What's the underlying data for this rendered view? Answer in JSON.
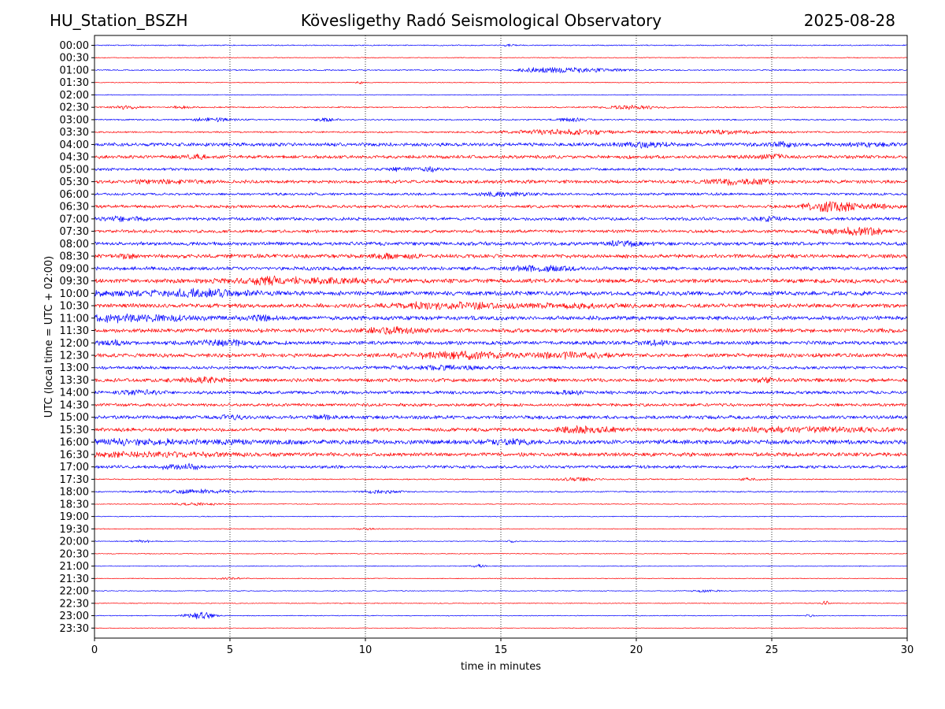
{
  "header": {
    "station": "HU_Station_BSZH",
    "observatory": "Kövesligethy Radó Seismological Observatory",
    "date": "2025-08-28"
  },
  "chart_data": {
    "type": "line",
    "chart_kind": "helicorder (24 h seismogram, 30-minute traces)",
    "xlabel": "time in minutes",
    "ylabel": "UTC (local time = UTC + 02:00)",
    "xlim": [
      0,
      30
    ],
    "x_ticks": [
      0,
      5,
      10,
      15,
      20,
      25,
      30
    ],
    "x_tick_labels": [
      "0",
      "5",
      "10",
      "15",
      "20",
      "25",
      "30"
    ],
    "grid": "vertical dotted lines at each x tick",
    "trace_colors": [
      "#0000ff",
      "#ff0000"
    ],
    "rows": [
      {
        "label": "00:00",
        "amp": 0.8,
        "bursts": [
          [
            15.3,
            1.6,
            0.2
          ]
        ]
      },
      {
        "label": "00:30",
        "amp": 0.6,
        "bursts": []
      },
      {
        "label": "01:00",
        "amp": 0.9,
        "bursts": [
          [
            17.8,
            3.5,
            1.2
          ],
          [
            16.3,
            2.5,
            0.5
          ]
        ]
      },
      {
        "label": "01:30",
        "amp": 0.6,
        "bursts": [
          [
            9.8,
            2.0,
            0.1
          ]
        ]
      },
      {
        "label": "02:00",
        "amp": 0.6,
        "bursts": []
      },
      {
        "label": "02:30",
        "amp": 0.9,
        "bursts": [
          [
            1.2,
            2.5,
            0.4
          ],
          [
            3.2,
            2.5,
            0.2
          ],
          [
            19.8,
            3.0,
            0.8
          ]
        ]
      },
      {
        "label": "03:00",
        "amp": 1.0,
        "bursts": [
          [
            4.4,
            3.0,
            0.6
          ],
          [
            8.5,
            2.5,
            0.3
          ],
          [
            17.5,
            2.5,
            0.5
          ]
        ]
      },
      {
        "label": "03:30",
        "amp": 1.1,
        "bursts": [
          [
            17.3,
            4.0,
            1.5
          ],
          [
            23.0,
            3.0,
            1.5
          ]
        ]
      },
      {
        "label": "04:00",
        "amp": 2.6,
        "bursts": [
          [
            20.2,
            4.0,
            0.6
          ],
          [
            28.5,
            3.0,
            0.6
          ],
          [
            25.4,
            3.5,
            0.3
          ]
        ]
      },
      {
        "label": "04:30",
        "amp": 2.4,
        "bursts": [
          [
            3.7,
            3.0,
            0.3
          ],
          [
            25.0,
            3.0,
            0.6
          ]
        ]
      },
      {
        "label": "05:00",
        "amp": 2.0,
        "bursts": [
          [
            12.4,
            3.0,
            0.3
          ],
          [
            11.2,
            2.5,
            0.3
          ]
        ]
      },
      {
        "label": "05:30",
        "amp": 2.4,
        "bursts": [
          [
            23.4,
            4.0,
            0.6
          ],
          [
            24.6,
            3.0,
            0.3
          ],
          [
            2.5,
            2.5,
            1.0
          ]
        ]
      },
      {
        "label": "06:00",
        "amp": 1.8,
        "bursts": [
          [
            15.0,
            2.5,
            0.8
          ]
        ]
      },
      {
        "label": "06:30",
        "amp": 2.2,
        "bursts": [
          [
            26.9,
            6.0,
            0.5
          ],
          [
            27.6,
            5.0,
            0.5
          ],
          [
            29.0,
            4.0,
            0.3
          ]
        ]
      },
      {
        "label": "07:00",
        "amp": 2.4,
        "bursts": [
          [
            24.8,
            4.0,
            0.4
          ],
          [
            1.0,
            3.0,
            0.6
          ]
        ]
      },
      {
        "label": "07:30",
        "amp": 2.2,
        "bursts": [
          [
            27.8,
            4.5,
            0.7
          ],
          [
            28.6,
            4.0,
            0.4
          ]
        ]
      },
      {
        "label": "08:00",
        "amp": 2.6,
        "bursts": [
          [
            19.5,
            3.5,
            0.5
          ]
        ]
      },
      {
        "label": "08:30",
        "amp": 2.8,
        "bursts": [
          [
            1.2,
            4.0,
            0.2
          ],
          [
            10.7,
            3.5,
            0.4
          ],
          [
            11.8,
            3.0,
            0.2
          ]
        ]
      },
      {
        "label": "09:00",
        "amp": 2.6,
        "bursts": [
          [
            16.5,
            3.5,
            1.0
          ]
        ]
      },
      {
        "label": "09:30",
        "amp": 3.0,
        "bursts": [
          [
            8.0,
            4.0,
            2.0
          ],
          [
            6.3,
            3.5,
            0.5
          ]
        ]
      },
      {
        "label": "10:00",
        "amp": 3.2,
        "bursts": [
          [
            3.9,
            5.0,
            1.2
          ],
          [
            1.0,
            3.0,
            1.2
          ]
        ]
      },
      {
        "label": "10:30",
        "amp": 3.0,
        "bursts": [
          [
            13.5,
            4.0,
            1.5
          ],
          [
            12.0,
            3.0,
            0.5
          ],
          [
            17.5,
            3.0,
            1.0
          ]
        ]
      },
      {
        "label": "11:00",
        "amp": 3.0,
        "bursts": [
          [
            1.3,
            5.0,
            1.8
          ],
          [
            6.1,
            3.0,
            0.4
          ]
        ]
      },
      {
        "label": "11:30",
        "amp": 3.0,
        "bursts": [
          [
            11.0,
            4.0,
            0.8
          ]
        ]
      },
      {
        "label": "12:00",
        "amp": 2.8,
        "bursts": [
          [
            4.6,
            4.0,
            0.8
          ],
          [
            20.7,
            3.5,
            0.4
          ],
          [
            0.6,
            3.0,
            0.4
          ]
        ]
      },
      {
        "label": "12:30",
        "amp": 2.8,
        "bursts": [
          [
            13.4,
            4.5,
            1.5
          ],
          [
            17.5,
            4.0,
            1.0
          ]
        ]
      },
      {
        "label": "13:00",
        "amp": 2.2,
        "bursts": [
          [
            13.0,
            3.0,
            1.0
          ]
        ]
      },
      {
        "label": "13:30",
        "amp": 2.6,
        "bursts": [
          [
            4.0,
            4.0,
            0.6
          ],
          [
            24.8,
            3.0,
            0.3
          ]
        ]
      },
      {
        "label": "14:00",
        "amp": 2.4,
        "bursts": [
          [
            1.7,
            3.5,
            0.5
          ],
          [
            17.6,
            3.0,
            0.3
          ]
        ]
      },
      {
        "label": "14:30",
        "amp": 2.2,
        "bursts": []
      },
      {
        "label": "15:00",
        "amp": 2.6,
        "bursts": [
          [
            5.1,
            3.5,
            0.3
          ],
          [
            8.4,
            3.0,
            0.3
          ]
        ]
      },
      {
        "label": "15:30",
        "amp": 2.6,
        "bursts": [
          [
            18.0,
            4.5,
            0.8
          ],
          [
            26.3,
            3.5,
            2.0
          ]
        ]
      },
      {
        "label": "16:00",
        "amp": 3.2,
        "bursts": [
          [
            1.5,
            3.5,
            3.0
          ],
          [
            15.2,
            3.0,
            0.8
          ]
        ]
      },
      {
        "label": "16:30",
        "amp": 2.8,
        "bursts": [
          [
            2.0,
            3.0,
            2.5
          ]
        ]
      },
      {
        "label": "17:00",
        "amp": 2.2,
        "bursts": [
          [
            3.4,
            4.0,
            0.4
          ],
          [
            2.6,
            3.0,
            0.3
          ]
        ]
      },
      {
        "label": "17:30",
        "amp": 0.9,
        "bursts": [
          [
            17.8,
            3.0,
            0.5
          ],
          [
            24.2,
            2.0,
            0.3
          ]
        ]
      },
      {
        "label": "18:00",
        "amp": 0.9,
        "bursts": [
          [
            3.8,
            3.0,
            1.2
          ],
          [
            10.6,
            2.5,
            0.5
          ]
        ]
      },
      {
        "label": "18:30",
        "amp": 0.6,
        "bursts": [
          [
            3.8,
            1.8,
            0.8
          ]
        ]
      },
      {
        "label": "19:00",
        "amp": 0.6,
        "bursts": []
      },
      {
        "label": "19:30",
        "amp": 0.6,
        "bursts": [
          [
            10.0,
            1.6,
            0.3
          ]
        ]
      },
      {
        "label": "20:00",
        "amp": 0.6,
        "bursts": [
          [
            1.8,
            2.0,
            0.3
          ],
          [
            15.4,
            2.5,
            0.1
          ]
        ]
      },
      {
        "label": "20:30",
        "amp": 0.6,
        "bursts": []
      },
      {
        "label": "21:00",
        "amp": 0.6,
        "bursts": [
          [
            14.2,
            2.5,
            0.2
          ]
        ]
      },
      {
        "label": "21:30",
        "amp": 0.6,
        "bursts": [
          [
            5.0,
            1.6,
            0.4
          ]
        ]
      },
      {
        "label": "22:00",
        "amp": 0.6,
        "bursts": [
          [
            22.5,
            1.8,
            0.4
          ]
        ]
      },
      {
        "label": "22:30",
        "amp": 0.6,
        "bursts": [
          [
            27.0,
            3.5,
            0.1
          ]
        ]
      },
      {
        "label": "23:00",
        "amp": 0.6,
        "bursts": [
          [
            4.0,
            5.0,
            0.3
          ],
          [
            3.5,
            3.0,
            0.2
          ],
          [
            26.4,
            2.5,
            0.1
          ]
        ]
      },
      {
        "label": "23:30",
        "amp": 0.5,
        "bursts": []
      }
    ]
  }
}
